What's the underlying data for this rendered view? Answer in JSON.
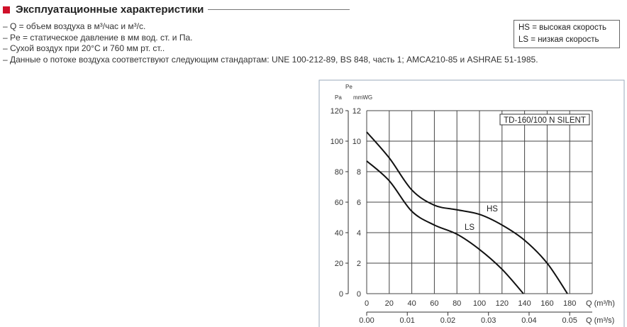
{
  "section": {
    "title": "Эксплуатационные характеристики",
    "accent_color": "#d0102a"
  },
  "notes": [
    "– Q = объем воздуха в м³/час и м³/с.",
    "– Pe = статическое давление в мм вод. ст. и Па.",
    "– Сухой воздух при 20°C и 760 мм рт. ст..",
    "– Данные о потоке воздуха соответствуют следующим стандартам: UNE 100-212-89, BS 848, часть 1; AMCA210-85 и ASHRAE 51-1985."
  ],
  "legend": [
    {
      "key": "HS",
      "text": "= высокая скорость"
    },
    {
      "key": "LS",
      "text": "= низкая скорость"
    }
  ],
  "chart_data": {
    "type": "line",
    "title": "TD-160/100 N SILENT",
    "ylabel_top": "Pe",
    "ylabel_pa": "Pa",
    "ylabel_mm": "mmWG",
    "xlabel": "Q (m³/h)",
    "x2label": "Q (m³/s)",
    "xlim": [
      0,
      200
    ],
    "ylim": [
      0,
      12
    ],
    "grid": true,
    "x_ticks": [
      "0",
      "20",
      "40",
      "60",
      "80",
      "100",
      "120",
      "140",
      "160",
      "180"
    ],
    "x2_ticks": [
      "0.00",
      "0.01",
      "0.02",
      "0.03",
      "0.04",
      "0.05"
    ],
    "y_ticks_mm": [
      "0",
      "2",
      "4",
      "6",
      "8",
      "10",
      "12"
    ],
    "y_ticks_pa": [
      "0",
      "20",
      "40",
      "60",
      "80",
      "100",
      "120"
    ],
    "series": [
      {
        "name": "HS",
        "x": [
          0,
          20,
          40,
          60,
          80,
          100,
          120,
          140,
          160,
          178
        ],
        "y": [
          10.6,
          8.9,
          6.8,
          5.8,
          5.5,
          5.2,
          4.5,
          3.5,
          2.0,
          0
        ]
      },
      {
        "name": "LS",
        "x": [
          0,
          20,
          40,
          60,
          80,
          100,
          120,
          139
        ],
        "y": [
          8.7,
          7.4,
          5.4,
          4.5,
          3.9,
          2.9,
          1.6,
          0
        ]
      }
    ]
  }
}
